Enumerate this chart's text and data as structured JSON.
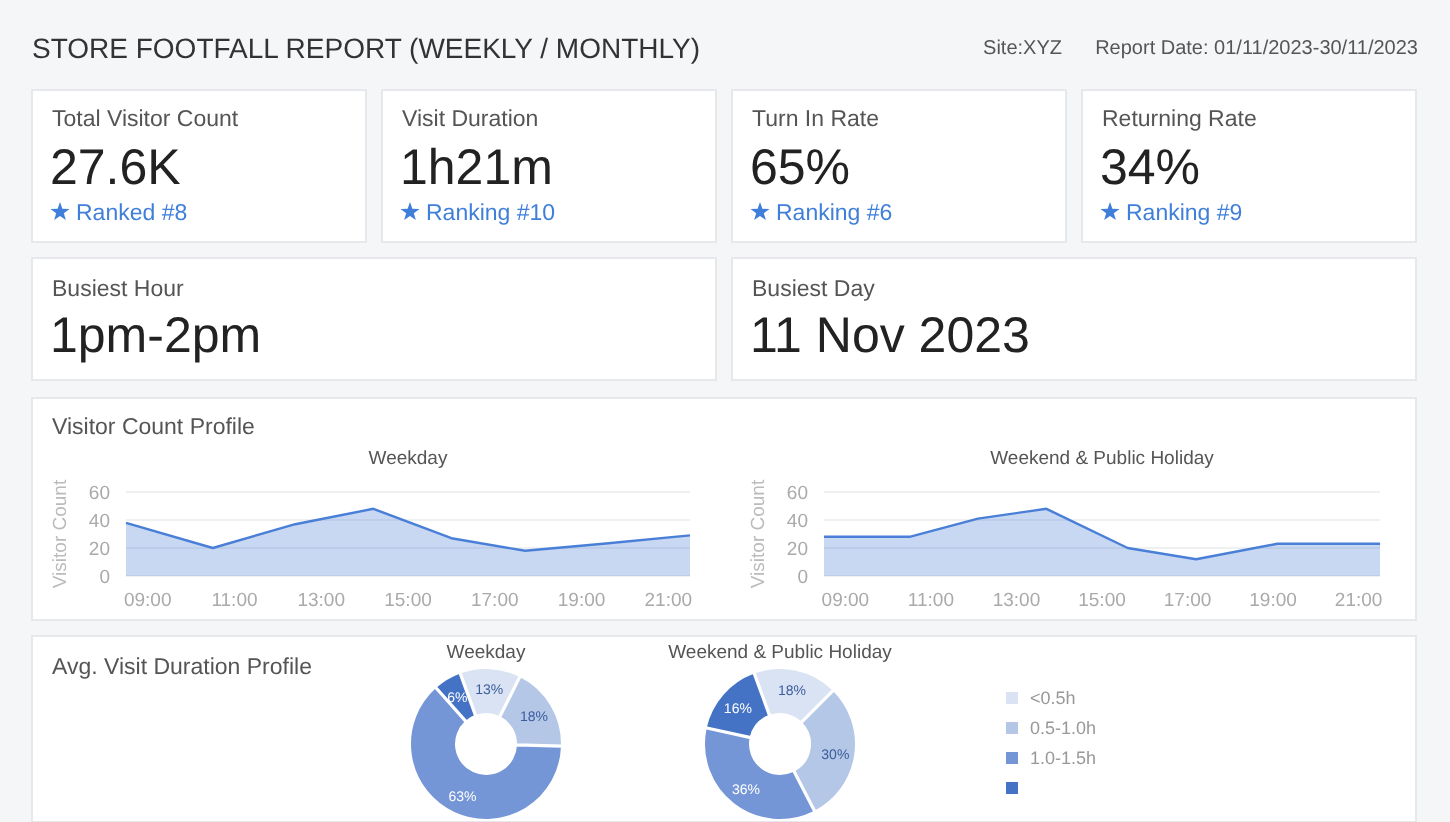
{
  "chart_data": [
    {
      "type": "other",
      "title": "STORE FOOTFALL REPORT (WEEKLY / MONTHLY)",
      "annotations": [
        "Site:XYZ",
        "Report Date: 01/11/2023-30/11/2023",
        "Total Visitor Count",
        "27.6K",
        "Ranked #8",
        "Visit Duration",
        "1h21m",
        "Ranking #10",
        "Turn In Rate",
        "65%",
        "Ranking #6",
        "Returning Rate",
        "34%",
        "Ranking #9",
        "Busiest Hour",
        "1pm-2pm",
        "Busiest Day",
        "11 Nov 2023",
        "Visitor Count Profile",
        "Avg. Visit Duration Profile"
      ]
    },
    {
      "type": "area",
      "title": "Weekday",
      "ylabel": "Visitor Count",
      "xlim": [
        8.5,
        21.5
      ],
      "xticks": [
        {
          "value": 9,
          "label": "09:00"
        },
        {
          "value": 11,
          "label": "11:00"
        },
        {
          "value": 13,
          "label": "13:00"
        },
        {
          "value": 15,
          "label": "15:00"
        },
        {
          "value": 17,
          "label": "17:00"
        },
        {
          "value": 19,
          "label": "19:00"
        },
        {
          "value": 21,
          "label": "21:00"
        }
      ],
      "ylim": [
        0,
        60
      ],
      "yticks": [
        0,
        20,
        40,
        60
      ],
      "grid": "y",
      "x": [
        8.5,
        10.5,
        12.4,
        14.2,
        16,
        17.7,
        19.5,
        21.5
      ],
      "series": [
        {
          "color": "#4a7fd8",
          "values": [
            38,
            20,
            37,
            48,
            27,
            18,
            23,
            29
          ]
        }
      ]
    },
    {
      "type": "area",
      "title": "Weekend & Public Holiday",
      "ylabel": "Visitor Count",
      "xlim": [
        8.5,
        21.5
      ],
      "xticks": [
        {
          "value": 9,
          "label": "09:00"
        },
        {
          "value": 11,
          "label": "11:00"
        },
        {
          "value": 13,
          "label": "13:00"
        },
        {
          "value": 15,
          "label": "15:00"
        },
        {
          "value": 17,
          "label": "17:00"
        },
        {
          "value": 19,
          "label": "19:00"
        },
        {
          "value": 21,
          "label": "21:00"
        }
      ],
      "ylim": [
        0,
        60
      ],
      "yticks": [
        0,
        20,
        40,
        60
      ],
      "grid": "y",
      "x": [
        8.5,
        10.5,
        12.1,
        13.7,
        15.6,
        17.2,
        19.1,
        21.5
      ],
      "series": [
        {
          "color": "#4a7fd8",
          "values": [
            28,
            28,
            41,
            48,
            20,
            12,
            23,
            23
          ]
        }
      ]
    },
    {
      "type": "donut",
      "categories": [
        "<0.5h",
        "0.5-1.0h",
        "1.0-1.5h",
        null
      ],
      "colors": [
        "#dae3f3",
        "#b4c7e7",
        "#7596d6",
        "#4472c4"
      ],
      "legend": "right",
      "series": [
        {
          "name": "Weekday",
          "values": [
            13,
            18,
            63,
            6
          ],
          "value_labels": [
            "13%",
            "18%",
            "63%",
            "6%"
          ]
        },
        {
          "name": "Weekend & Public Holiday",
          "values": [
            18,
            30,
            36,
            16
          ],
          "value_labels": [
            "18%",
            "30%",
            "36%",
            "16%"
          ]
        }
      ]
    }
  ]
}
